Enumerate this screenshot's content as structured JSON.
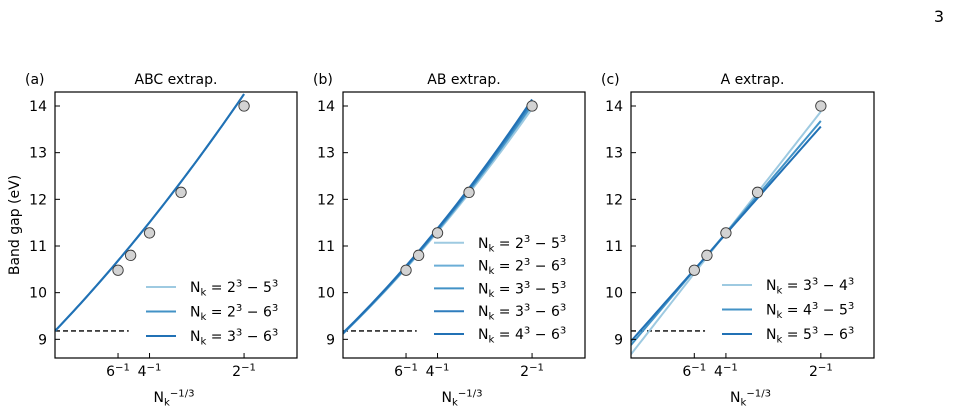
{
  "page_number": "3",
  "colors": {
    "light": "#9ecae1",
    "mid1": "#6baed6",
    "mid2": "#4292c6",
    "mid3": "#2f7dbd",
    "dark": "#2171b5",
    "marker": "#d3d3d3"
  },
  "chart_data": [
    {
      "type": "line",
      "panel_label": "(a)",
      "title": "ABC extrap.",
      "xlabel": "N_k^{-1/3}",
      "ylabel": "Band gap (eV)",
      "xlim": [
        0.0,
        0.64
      ],
      "ylim": [
        8.6,
        14.3
      ],
      "xticks": [
        {
          "value": 0.1667,
          "label": "6^{-1}"
        },
        {
          "value": 0.25,
          "label": "4^{-1}"
        },
        {
          "value": 0.5,
          "label": "2^{-1}"
        }
      ],
      "yticks": [
        9,
        10,
        11,
        12,
        13,
        14
      ],
      "reference_line": {
        "y": 9.18,
        "x": [
          0.0,
          0.195
        ]
      },
      "points": [
        {
          "x": 0.5,
          "y": 14.0
        },
        {
          "x": 0.3333,
          "y": 12.15
        },
        {
          "x": 0.25,
          "y": 11.28
        },
        {
          "x": 0.2,
          "y": 10.8
        },
        {
          "x": 0.1667,
          "y": 10.48
        }
      ],
      "series": [
        {
          "name": "N_k = 2^3 − 5^3",
          "fit": [
            9.18,
            8.47,
            3.36
          ],
          "color": "light"
        },
        {
          "name": "N_k = 2^3 − 6^3",
          "fit": [
            9.18,
            8.47,
            3.36
          ],
          "color": "mid2"
        },
        {
          "name": "N_k = 3^3 − 6^3",
          "fit": [
            9.18,
            8.47,
            3.36
          ],
          "color": "dark"
        }
      ]
    },
    {
      "type": "line",
      "panel_label": "(b)",
      "title": "AB extrap.",
      "xlabel": "N_k^{-1/3}",
      "ylabel": "",
      "xlim": [
        0.0,
        0.64
      ],
      "ylim": [
        8.6,
        14.3
      ],
      "xticks": [
        {
          "value": 0.1667,
          "label": "6^{-1}"
        },
        {
          "value": 0.25,
          "label": "4^{-1}"
        },
        {
          "value": 0.5,
          "label": "2^{-1}"
        }
      ],
      "yticks": [
        9,
        10,
        11,
        12,
        13,
        14
      ],
      "reference_line": {
        "y": 9.18,
        "x": [
          0.0,
          0.195
        ]
      },
      "points": [
        {
          "x": 0.5,
          "y": 14.0
        },
        {
          "x": 0.3333,
          "y": 12.15
        },
        {
          "x": 0.25,
          "y": 11.28
        },
        {
          "x": 0.2,
          "y": 10.8
        },
        {
          "x": 0.1667,
          "y": 10.48
        }
      ],
      "series": [
        {
          "name": "N_k = 2^3 − 5^3",
          "fit": [
            9.12,
            7.8,
            3.7
          ],
          "color": "light"
        },
        {
          "name": "N_k = 2^3 − 6^3",
          "fit": [
            9.12,
            7.85,
            3.9
          ],
          "color": "mid1"
        },
        {
          "name": "N_k = 3^3 − 5^3",
          "fit": [
            9.13,
            7.85,
            3.95
          ],
          "color": "mid2"
        },
        {
          "name": "N_k = 3^3 − 6^3",
          "fit": [
            9.13,
            7.9,
            4.1
          ],
          "color": "mid3"
        },
        {
          "name": "N_k = 4^3 − 6^3",
          "fit": [
            9.14,
            7.9,
            4.2
          ],
          "color": "dark"
        }
      ]
    },
    {
      "type": "line",
      "panel_label": "(c)",
      "title": "A extrap.",
      "xlabel": "N_k^{-1/3}",
      "ylabel": "",
      "xlim": [
        0.0,
        0.64
      ],
      "ylim": [
        8.6,
        14.3
      ],
      "xticks": [
        {
          "value": 0.1667,
          "label": "6^{-1}"
        },
        {
          "value": 0.25,
          "label": "4^{-1}"
        },
        {
          "value": 0.5,
          "label": "2^{-1}"
        }
      ],
      "yticks": [
        9,
        10,
        11,
        12,
        13,
        14
      ],
      "reference_line": {
        "y": 9.18,
        "x": [
          0.0,
          0.195
        ]
      },
      "points": [
        {
          "x": 0.5,
          "y": 14.0
        },
        {
          "x": 0.3333,
          "y": 12.15
        },
        {
          "x": 0.25,
          "y": 11.28
        },
        {
          "x": 0.2,
          "y": 10.8
        },
        {
          "x": 0.1667,
          "y": 10.48
        }
      ],
      "series": [
        {
          "name": "N_k = 3^3 − 4^3",
          "fit": [
            8.68,
            10.4,
            0
          ],
          "color": "light"
        },
        {
          "name": "N_k = 4^3 − 5^3",
          "fit": [
            8.88,
            9.6,
            0
          ],
          "color": "mid2"
        },
        {
          "name": "N_k = 5^3 − 6^3",
          "fit": [
            8.96,
            9.2,
            0
          ],
          "color": "dark"
        }
      ]
    }
  ]
}
